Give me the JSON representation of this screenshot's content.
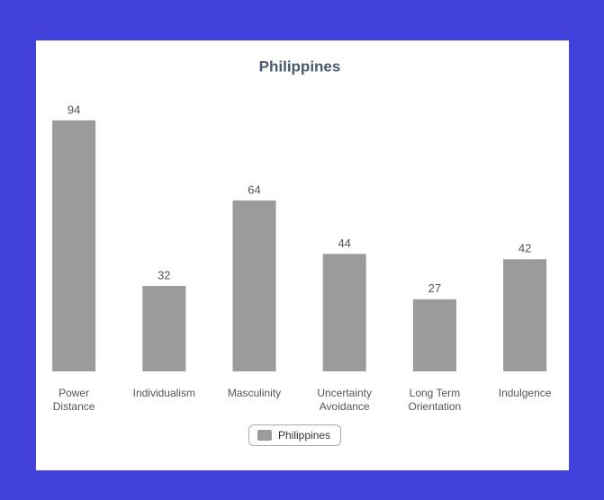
{
  "chart_data": {
    "type": "bar",
    "title": "Philippines",
    "categories": [
      "Power Distance",
      "Individualism",
      "Masculinity",
      "Uncertainty Avoidance",
      "Long Term Orientation",
      "Indulgence"
    ],
    "series": [
      {
        "name": "Philippines",
        "color": "#9c9a9b",
        "values": [
          94,
          32,
          64,
          44,
          27,
          42
        ]
      }
    ],
    "ylim": [
      0,
      100
    ],
    "legend": "bottom"
  }
}
